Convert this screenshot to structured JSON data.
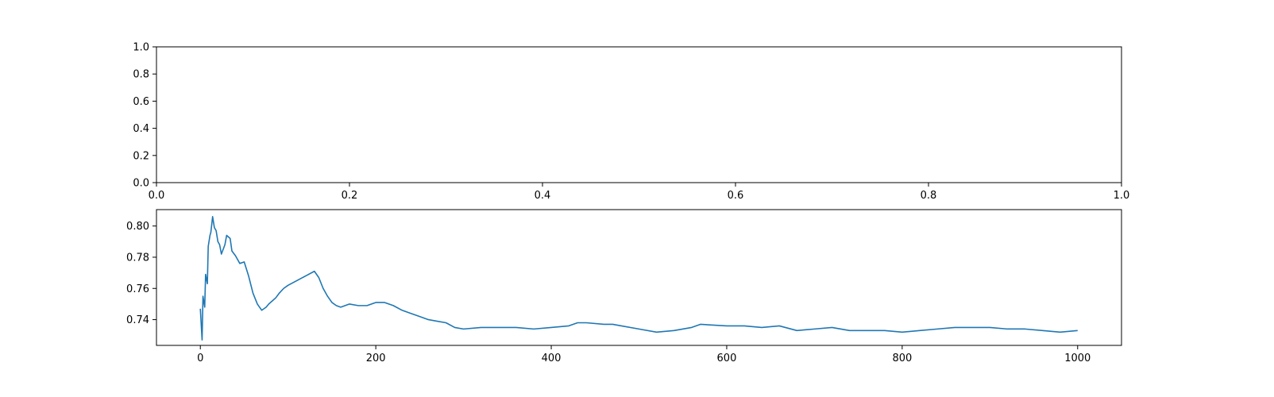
{
  "chart_data": [
    {
      "type": "line",
      "title": "",
      "xlabel": "",
      "ylabel": "",
      "xlim": [
        0,
        1
      ],
      "ylim": [
        0,
        1
      ],
      "xticks": [
        0.0,
        0.2,
        0.4,
        0.6,
        0.8,
        1.0
      ],
      "xtick_labels": [
        "0.0",
        "0.2",
        "0.4",
        "0.6",
        "0.8",
        "1.0"
      ],
      "yticks": [
        0.0,
        0.2,
        0.4,
        0.6,
        0.8,
        1.0
      ],
      "ytick_labels": [
        "0.0",
        "0.2",
        "0.4",
        "0.6",
        "0.8",
        "1.0"
      ],
      "grid": false,
      "series": []
    },
    {
      "type": "line",
      "title": "",
      "xlabel": "",
      "ylabel": "",
      "xlim": [
        -50,
        1050
      ],
      "ylim": [
        0.7235,
        0.8105
      ],
      "xticks": [
        0,
        200,
        400,
        600,
        800,
        1000
      ],
      "xtick_labels": [
        "0",
        "200",
        "400",
        "600",
        "800",
        "1000"
      ],
      "yticks": [
        0.74,
        0.76,
        0.78,
        0.8
      ],
      "ytick_labels": [
        "0.74",
        "0.76",
        "0.78",
        "0.80"
      ],
      "grid": false,
      "line_color": "#1f77b4",
      "series": [
        {
          "x": [
            0,
            2,
            3,
            5,
            6,
            8,
            9,
            11,
            12,
            14,
            16,
            18,
            20,
            22,
            24,
            26,
            28,
            30,
            32,
            34,
            36,
            40,
            45,
            50,
            55,
            60,
            65,
            70,
            75,
            78,
            82,
            86,
            90,
            95,
            100,
            110,
            120,
            130,
            135,
            140,
            145,
            150,
            155,
            160,
            170,
            180,
            190,
            200,
            210,
            220,
            230,
            240,
            250,
            260,
            270,
            280,
            290,
            300,
            320,
            340,
            360,
            380,
            400,
            420,
            430,
            440,
            460,
            470,
            480,
            500,
            520,
            540,
            560,
            570,
            600,
            620,
            640,
            660,
            680,
            700,
            720,
            740,
            760,
            780,
            800,
            820,
            840,
            860,
            880,
            900,
            920,
            940,
            960,
            980,
            1000
          ],
          "y": [
            0.747,
            0.727,
            0.755,
            0.748,
            0.769,
            0.763,
            0.787,
            0.794,
            0.796,
            0.806,
            0.799,
            0.797,
            0.79,
            0.788,
            0.782,
            0.785,
            0.788,
            0.794,
            0.793,
            0.792,
            0.784,
            0.781,
            0.776,
            0.777,
            0.768,
            0.757,
            0.75,
            0.746,
            0.748,
            0.75,
            0.752,
            0.754,
            0.757,
            0.76,
            0.762,
            0.765,
            0.768,
            0.771,
            0.767,
            0.76,
            0.755,
            0.751,
            0.749,
            0.748,
            0.75,
            0.749,
            0.749,
            0.751,
            0.751,
            0.749,
            0.746,
            0.744,
            0.742,
            0.74,
            0.739,
            0.738,
            0.735,
            0.734,
            0.735,
            0.735,
            0.735,
            0.734,
            0.735,
            0.736,
            0.738,
            0.738,
            0.737,
            0.737,
            0.736,
            0.734,
            0.732,
            0.733,
            0.735,
            0.737,
            0.736,
            0.736,
            0.735,
            0.736,
            0.733,
            0.734,
            0.735,
            0.733,
            0.733,
            0.733,
            0.732,
            0.733,
            0.734,
            0.735,
            0.735,
            0.735,
            0.734,
            0.734,
            0.733,
            0.732,
            0.733
          ]
        }
      ]
    }
  ]
}
